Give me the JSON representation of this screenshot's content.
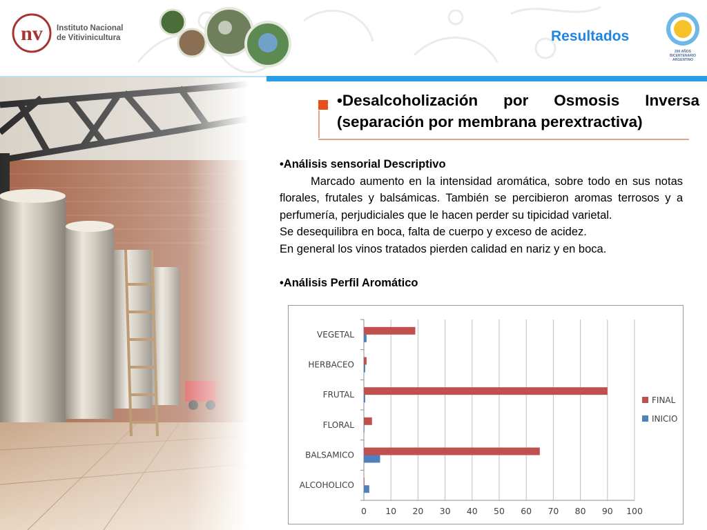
{
  "header": {
    "org_name_line1": "Instituto Nacional",
    "org_name_line2": "de Vitivinicultura",
    "logo_letters": "nv",
    "section_title": "Resultados",
    "bicentenario_line1": "200 AÑOS",
    "bicentenario_line2": "BICENTENARIO",
    "bicentenario_line3": "ARGENTINO"
  },
  "main": {
    "title": "•Desalcoholización por Osmosis Inversa (separación por membrana perextractiva)",
    "sensorial_heading": "•Análisis sensorial Descriptivo",
    "sensorial_paragraph": "Marcado aumento en la intensidad aromática, sobre todo en sus notas florales, frutales y balsámicas. También se percibieron aromas  terrosos y a perfumería, perjudiciales que le hacen perder su tipicidad varietal.",
    "line2": "Se desequilibra en boca, falta de cuerpo y exceso de acidez.",
    "line3": "En general los vinos tratados pierden calidad en nariz y en boca.",
    "aromatic_heading": "•Análisis Perfil Aromático"
  },
  "colors": {
    "final": "#c0504d",
    "inicio": "#4f81bd",
    "accent_blue": "#2a9de6",
    "title_square": "#e84d1a"
  },
  "chart_data": {
    "type": "bar",
    "orientation": "horizontal",
    "categories": [
      "VEGETAL",
      "HERBACEO",
      "FRUTAL",
      "FLORAL",
      "BALSAMICO",
      "ALCOHOLICO"
    ],
    "series": [
      {
        "name": "FINAL",
        "values": [
          19,
          1,
          90,
          3,
          65,
          0
        ]
      },
      {
        "name": "INICIO",
        "values": [
          1,
          0.5,
          0.5,
          0,
          6,
          2
        ]
      }
    ],
    "xlim": [
      0,
      100
    ],
    "xticks": [
      "0",
      "10",
      "20",
      "30",
      "40",
      "50",
      "60",
      "70",
      "80",
      "90",
      "100"
    ],
    "grid": true,
    "legend_position": "right"
  }
}
